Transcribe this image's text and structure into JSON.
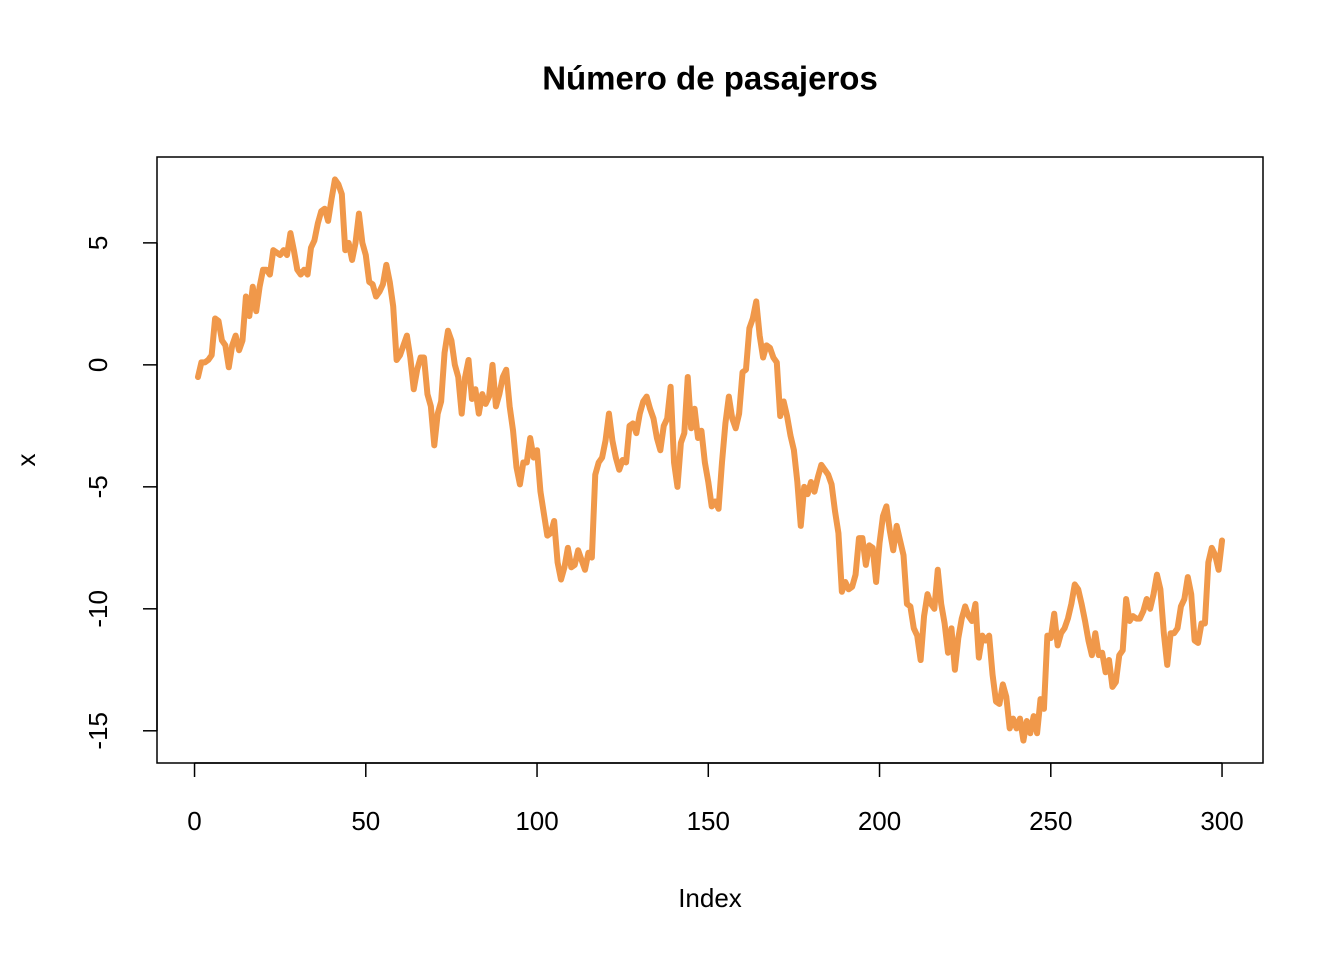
{
  "chart_data": {
    "type": "line",
    "title": "Número de pasajeros",
    "xlabel": "Index",
    "ylabel": "x",
    "color": "#F0984A",
    "xlim": [
      -10.96,
      311.96
    ],
    "ylim": [
      -16.32,
      8.52
    ],
    "xticks": [
      0,
      50,
      100,
      150,
      200,
      250,
      300
    ],
    "yticks": [
      -15,
      -10,
      -5,
      0,
      5
    ],
    "x": [
      1,
      2,
      3,
      4,
      5,
      6,
      7,
      8,
      9,
      10,
      11,
      12,
      13,
      14,
      15,
      16,
      17,
      18,
      19,
      20,
      21,
      22,
      23,
      24,
      25,
      26,
      27,
      28,
      29,
      30,
      31,
      32,
      33,
      34,
      35,
      36,
      37,
      38,
      39,
      40,
      41,
      42,
      43,
      44,
      45,
      46,
      47,
      48,
      49,
      50,
      51,
      52,
      53,
      54,
      55,
      56,
      57,
      58,
      59,
      60,
      61,
      62,
      63,
      64,
      65,
      66,
      67,
      68,
      69,
      70,
      71,
      72,
      73,
      74,
      75,
      76,
      77,
      78,
      79,
      80,
      81,
      82,
      83,
      84,
      85,
      86,
      87,
      88,
      89,
      90,
      91,
      92,
      93,
      94,
      95,
      96,
      97,
      98,
      99,
      100,
      101,
      102,
      103,
      104,
      105,
      106,
      107,
      108,
      109,
      110,
      111,
      112,
      113,
      114,
      115,
      116,
      117,
      118,
      119,
      120,
      121,
      122,
      123,
      124,
      125,
      126,
      127,
      128,
      129,
      130,
      131,
      132,
      133,
      134,
      135,
      136,
      137,
      138,
      139,
      140,
      141,
      142,
      143,
      144,
      145,
      146,
      147,
      148,
      149,
      150,
      151,
      152,
      153,
      154,
      155,
      156,
      157,
      158,
      159,
      160,
      161,
      162,
      163,
      164,
      165,
      166,
      167,
      168,
      169,
      170,
      171,
      172,
      173,
      174,
      175,
      176,
      177,
      178,
      179,
      180,
      181,
      182,
      183,
      184,
      185,
      186,
      187,
      188,
      189,
      190,
      191,
      192,
      193,
      194,
      195,
      196,
      197,
      198,
      199,
      200,
      201,
      202,
      203,
      204,
      205,
      206,
      207,
      208,
      209,
      210,
      211,
      212,
      213,
      214,
      215,
      216,
      217,
      218,
      219,
      220,
      221,
      222,
      223,
      224,
      225,
      226,
      227,
      228,
      229,
      230,
      231,
      232,
      233,
      234,
      235,
      236,
      237,
      238,
      239,
      240,
      241,
      242,
      243,
      244,
      245,
      246,
      247,
      248,
      249,
      250,
      251,
      252,
      253,
      254,
      255,
      256,
      257,
      258,
      259,
      260,
      261,
      262,
      263,
      264,
      265,
      266,
      267,
      268,
      269,
      270,
      271,
      272,
      273,
      274,
      275,
      276,
      277,
      278,
      279,
      280,
      281,
      282,
      283,
      284,
      285,
      286,
      287,
      288,
      289,
      290,
      291,
      292,
      293,
      294,
      295,
      296,
      297,
      298,
      299,
      300
    ],
    "values": [
      -0.5,
      0.1,
      0.1,
      0.2,
      0.4,
      1.9,
      1.8,
      1.0,
      0.8,
      -0.1,
      0.8,
      1.2,
      0.6,
      1.0,
      2.8,
      2.0,
      3.2,
      2.2,
      3.2,
      3.9,
      3.9,
      3.7,
      4.7,
      4.6,
      4.5,
      4.7,
      4.5,
      5.4,
      4.7,
      3.9,
      3.7,
      3.9,
      3.7,
      4.8,
      5.1,
      5.8,
      6.3,
      6.4,
      5.9,
      6.8,
      7.6,
      7.4,
      7.0,
      4.7,
      5.0,
      4.3,
      5.0,
      6.2,
      5.0,
      4.5,
      3.4,
      3.3,
      2.8,
      3.0,
      3.3,
      4.1,
      3.4,
      2.4,
      0.2,
      0.4,
      0.8,
      1.2,
      0.3,
      -1.0,
      -0.2,
      0.3,
      0.3,
      -1.2,
      -1.7,
      -3.3,
      -2.0,
      -1.5,
      0.5,
      1.4,
      1.0,
      0.0,
      -0.5,
      -2.0,
      -0.5,
      0.2,
      -1.4,
      -1.0,
      -2.0,
      -1.2,
      -1.6,
      -1.3,
      0.0,
      -1.7,
      -1.2,
      -0.5,
      -0.2,
      -1.7,
      -2.7,
      -4.2,
      -4.9,
      -4.0,
      -4.0,
      -3.0,
      -3.8,
      -3.5,
      -5.2,
      -6.1,
      -7.0,
      -6.9,
      -6.4,
      -8.1,
      -8.8,
      -8.3,
      -7.5,
      -8.3,
      -8.2,
      -7.6,
      -8.0,
      -8.4,
      -7.7,
      -7.9,
      -4.5,
      -4.0,
      -3.8,
      -3.1,
      -2.0,
      -3.1,
      -3.8,
      -4.3,
      -3.9,
      -4.0,
      -2.5,
      -2.4,
      -2.8,
      -2.0,
      -1.5,
      -1.3,
      -1.8,
      -2.2,
      -3.0,
      -3.5,
      -2.5,
      -2.2,
      -0.9,
      -4.0,
      -5.0,
      -3.2,
      -2.8,
      -0.5,
      -2.6,
      -1.8,
      -3.0,
      -2.7,
      -4.0,
      -4.8,
      -5.8,
      -5.6,
      -5.9,
      -4.0,
      -2.4,
      -1.3,
      -2.2,
      -2.6,
      -2.0,
      -0.3,
      -0.2,
      1.5,
      1.9,
      2.6,
      1.2,
      0.3,
      0.8,
      0.7,
      0.3,
      0.1,
      -2.1,
      -1.5,
      -2.1,
      -2.9,
      -3.5,
      -4.8,
      -6.6,
      -5.0,
      -5.3,
      -4.8,
      -5.2,
      -4.6,
      -4.1,
      -4.3,
      -4.5,
      -4.9,
      -6.0,
      -6.9,
      -9.3,
      -8.9,
      -9.2,
      -9.1,
      -8.6,
      -7.1,
      -7.1,
      -8.2,
      -7.4,
      -7.5,
      -8.9,
      -7.3,
      -6.2,
      -5.8,
      -6.8,
      -7.6,
      -6.6,
      -7.2,
      -7.8,
      -9.8,
      -9.9,
      -10.8,
      -11.1,
      -12.1,
      -10.3,
      -9.4,
      -9.8,
      -10.0,
      -8.4,
      -9.8,
      -10.6,
      -11.8,
      -10.8,
      -12.5,
      -11.2,
      -10.4,
      -9.9,
      -10.3,
      -10.5,
      -9.8,
      -12.0,
      -11.1,
      -11.3,
      -11.1,
      -12.7,
      -13.8,
      -13.9,
      -13.1,
      -13.6,
      -14.9,
      -14.5,
      -14.9,
      -14.5,
      -15.4,
      -14.6,
      -15.1,
      -14.4,
      -15.1,
      -13.7,
      -14.1,
      -11.1,
      -11.2,
      -10.2,
      -11.5,
      -11.0,
      -10.8,
      -10.4,
      -9.8,
      -9.0,
      -9.2,
      -9.8,
      -10.5,
      -11.3,
      -11.9,
      -11.0,
      -11.9,
      -11.8,
      -12.6,
      -12.1,
      -13.2,
      -13.0,
      -11.9,
      -11.7,
      -9.6,
      -10.5,
      -10.3,
      -10.4,
      -10.4,
      -10.1,
      -9.6,
      -10.0,
      -9.4,
      -8.6,
      -9.2,
      -11.0,
      -12.3,
      -11.0,
      -11.0,
      -10.8,
      -9.9,
      -9.6,
      -8.7,
      -9.4,
      -11.3,
      -11.4,
      -10.6,
      -10.6,
      -8.1,
      -7.5,
      -7.8,
      -8.4,
      -7.2
    ]
  }
}
